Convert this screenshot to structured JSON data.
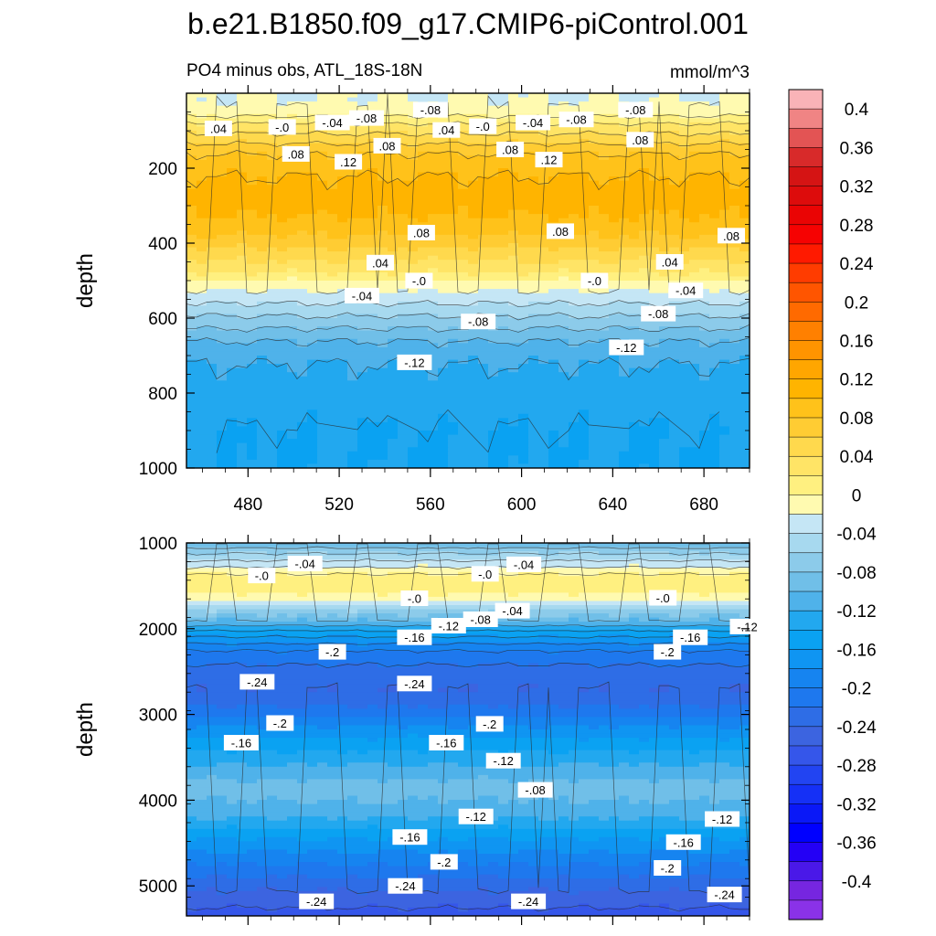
{
  "title": "b.e21.B1850.f09_g17.CMIP6-piControl.001",
  "chart_data": [
    {
      "type": "contour",
      "subtitle_left": "PO4 minus obs, ATL_18S-18N",
      "subtitle_right": "mmol/m^3",
      "ylabel": "depth",
      "xlabel": "",
      "xlim": [
        453,
        700
      ],
      "ylim": [
        1000,
        0
      ],
      "xticks": [
        "480",
        "520",
        "560",
        "600",
        "640",
        "680"
      ],
      "xtick_values": [
        480,
        520,
        560,
        600,
        640,
        680
      ],
      "yticks": [
        "200",
        "400",
        "600",
        "800",
        "1000"
      ],
      "ytick_values": [
        200,
        400,
        600,
        800,
        1000
      ],
      "depth_profile": [
        {
          "depth": 20,
          "value": -0.02
        },
        {
          "depth": 50,
          "value": -0.01
        },
        {
          "depth": 80,
          "value": 0.02
        },
        {
          "depth": 120,
          "value": 0.05
        },
        {
          "depth": 160,
          "value": 0.08
        },
        {
          "depth": 220,
          "value": 0.1
        },
        {
          "depth": 280,
          "value": 0.11
        },
        {
          "depth": 330,
          "value": 0.1
        },
        {
          "depth": 380,
          "value": 0.08
        },
        {
          "depth": 430,
          "value": 0.05
        },
        {
          "depth": 480,
          "value": 0.02
        },
        {
          "depth": 510,
          "value": -0.01
        },
        {
          "depth": 560,
          "value": -0.04
        },
        {
          "depth": 610,
          "value": -0.07
        },
        {
          "depth": 660,
          "value": -0.1
        },
        {
          "depth": 720,
          "value": -0.12
        },
        {
          "depth": 800,
          "value": -0.13
        },
        {
          "depth": 900,
          "value": -0.14
        },
        {
          "depth": 1000,
          "value": -0.14
        }
      ],
      "contour_labels": [
        {
          "x": 467,
          "depth": 94,
          "text": ".04"
        },
        {
          "x": 495,
          "depth": 90,
          "text": "-.0"
        },
        {
          "x": 517,
          "depth": 78,
          "text": "-.04"
        },
        {
          "x": 532,
          "depth": 66,
          "text": "-.08"
        },
        {
          "x": 541,
          "depth": 140,
          "text": ".08"
        },
        {
          "x": 501,
          "depth": 162,
          "text": ".08"
        },
        {
          "x": 524,
          "depth": 183,
          "text": ".12"
        },
        {
          "x": 560,
          "depth": 44,
          "text": "-.08"
        },
        {
          "x": 567,
          "depth": 98,
          "text": ".04"
        },
        {
          "x": 583,
          "depth": 88,
          "text": "-.0"
        },
        {
          "x": 595,
          "depth": 150,
          "text": ".08"
        },
        {
          "x": 605,
          "depth": 78,
          "text": "-.04"
        },
        {
          "x": 624,
          "depth": 70,
          "text": "-.08"
        },
        {
          "x": 612,
          "depth": 177,
          "text": ".12"
        },
        {
          "x": 650,
          "depth": 44,
          "text": "-.08"
        },
        {
          "x": 652,
          "depth": 124,
          "text": ".08"
        },
        {
          "x": 556,
          "depth": 372,
          "text": ".08"
        },
        {
          "x": 617,
          "depth": 368,
          "text": ".08"
        },
        {
          "x": 692,
          "depth": 380,
          "text": ".08"
        },
        {
          "x": 538,
          "depth": 452,
          "text": ".04"
        },
        {
          "x": 555,
          "depth": 500,
          "text": "-.0"
        },
        {
          "x": 530,
          "depth": 540,
          "text": "-.04"
        },
        {
          "x": 581,
          "depth": 609,
          "text": "-.08"
        },
        {
          "x": 553,
          "depth": 718,
          "text": "-.12"
        },
        {
          "x": 665,
          "depth": 450,
          "text": ".04"
        },
        {
          "x": 632,
          "depth": 500,
          "text": "-.0"
        },
        {
          "x": 672,
          "depth": 526,
          "text": "-.04"
        },
        {
          "x": 660,
          "depth": 588,
          "text": "-.08"
        },
        {
          "x": 646,
          "depth": 678,
          "text": "-.12"
        }
      ]
    },
    {
      "type": "contour",
      "ylabel": "depth",
      "xlabel": "",
      "xlim": [
        453,
        700
      ],
      "ylim": [
        5350,
        1000
      ],
      "xticks": [],
      "yticks": [
        "1000",
        "2000",
        "3000",
        "4000",
        "5000"
      ],
      "ytick_values": [
        1000,
        2000,
        3000,
        4000,
        5000
      ],
      "depth_profile": [
        {
          "depth": 1000,
          "value": -0.1
        },
        {
          "depth": 1080,
          "value": -0.07
        },
        {
          "depth": 1180,
          "value": -0.045
        },
        {
          "depth": 1280,
          "value": -0.02
        },
        {
          "depth": 1400,
          "value": 0.01
        },
        {
          "depth": 1550,
          "value": 0.01
        },
        {
          "depth": 1640,
          "value": -0.01
        },
        {
          "depth": 1760,
          "value": -0.05
        },
        {
          "depth": 1900,
          "value": -0.1
        },
        {
          "depth": 2050,
          "value": -0.15
        },
        {
          "depth": 2250,
          "value": -0.2
        },
        {
          "depth": 2500,
          "value": -0.23
        },
        {
          "depth": 2700,
          "value": -0.24
        },
        {
          "depth": 2950,
          "value": -0.215
        },
        {
          "depth": 3200,
          "value": -0.17
        },
        {
          "depth": 3500,
          "value": -0.13
        },
        {
          "depth": 3850,
          "value": -0.09
        },
        {
          "depth": 4150,
          "value": -0.11
        },
        {
          "depth": 4450,
          "value": -0.16
        },
        {
          "depth": 4750,
          "value": -0.2
        },
        {
          "depth": 5050,
          "value": -0.24
        },
        {
          "depth": 5350,
          "value": -0.27
        }
      ],
      "contour_labels": [
        {
          "x": 486,
          "depth": 1380,
          "text": "-.0"
        },
        {
          "x": 505,
          "depth": 1240,
          "text": "-.04"
        },
        {
          "x": 584,
          "depth": 1360,
          "text": "-.0"
        },
        {
          "x": 601,
          "depth": 1250,
          "text": "-.04"
        },
        {
          "x": 553,
          "depth": 1645,
          "text": "-.0"
        },
        {
          "x": 596,
          "depth": 1790,
          "text": "-.04"
        },
        {
          "x": 582,
          "depth": 1890,
          "text": "-.08"
        },
        {
          "x": 553,
          "depth": 2100,
          "text": "-.16"
        },
        {
          "x": 568,
          "depth": 1965,
          "text": "-.12"
        },
        {
          "x": 517,
          "depth": 2270,
          "text": "-.2"
        },
        {
          "x": 662,
          "depth": 1640,
          "text": "-.0"
        },
        {
          "x": 674,
          "depth": 2100,
          "text": "-.16"
        },
        {
          "x": 699,
          "depth": 1975,
          "text": "-.12"
        },
        {
          "x": 664,
          "depth": 2270,
          "text": "-.2"
        },
        {
          "x": 484,
          "depth": 2620,
          "text": "-.24"
        },
        {
          "x": 553,
          "depth": 2640,
          "text": "-.24"
        },
        {
          "x": 494,
          "depth": 3100,
          "text": "-.2"
        },
        {
          "x": 477,
          "depth": 3330,
          "text": "-.16"
        },
        {
          "x": 586,
          "depth": 3110,
          "text": "-.2"
        },
        {
          "x": 567,
          "depth": 3330,
          "text": "-.16"
        },
        {
          "x": 592,
          "depth": 3540,
          "text": "-.12"
        },
        {
          "x": 606,
          "depth": 3880,
          "text": "-.08"
        },
        {
          "x": 580,
          "depth": 4190,
          "text": "-.12"
        },
        {
          "x": 551,
          "depth": 4430,
          "text": "-.16"
        },
        {
          "x": 566,
          "depth": 4720,
          "text": "-.2"
        },
        {
          "x": 549,
          "depth": 5000,
          "text": "-.24"
        },
        {
          "x": 510,
          "depth": 5180,
          "text": "-.24"
        },
        {
          "x": 603,
          "depth": 5180,
          "text": "-.24"
        },
        {
          "x": 688,
          "depth": 4220,
          "text": "-.12"
        },
        {
          "x": 671,
          "depth": 4490,
          "text": "-.16"
        },
        {
          "x": 664,
          "depth": 4790,
          "text": "-.2"
        },
        {
          "x": 689,
          "depth": 5100,
          "text": "-.24"
        }
      ]
    }
  ],
  "colorbar": {
    "labels": [
      "0.4",
      "0.36",
      "0.32",
      "0.28",
      "0.24",
      "0.2",
      "0.16",
      "0.12",
      "0.08",
      "0.04",
      "0",
      "-0.04",
      "-0.08",
      "-0.12",
      "-0.16",
      "-0.2",
      "-0.24",
      "-0.28",
      "-0.32",
      "-0.36",
      "-0.4"
    ],
    "levels": [
      0.42,
      0.4,
      0.38,
      0.36,
      0.34,
      0.32,
      0.3,
      0.28,
      0.26,
      0.24,
      0.22,
      0.2,
      0.18,
      0.16,
      0.14,
      0.12,
      0.1,
      0.08,
      0.06,
      0.04,
      0.02,
      0.0,
      -0.02,
      -0.04,
      -0.06,
      -0.08,
      -0.1,
      -0.12,
      -0.14,
      -0.16,
      -0.18,
      -0.2,
      -0.22,
      -0.24,
      -0.26,
      -0.28,
      -0.3,
      -0.32,
      -0.34,
      -0.36,
      -0.38,
      -0.4,
      -0.42
    ],
    "colors": [
      "#f9b3b7",
      "#f08484",
      "#e35454",
      "#d82a2a",
      "#d51414",
      "#dd0c0c",
      "#ea0404",
      "#f60202",
      "#ff1a00",
      "#ff3c00",
      "#ff5500",
      "#ff6a00",
      "#ff8000",
      "#ff9400",
      "#ffa600",
      "#ffb400",
      "#ffc21a",
      "#ffcc33",
      "#ffd94d",
      "#ffe466",
      "#fff080",
      "#fffab0",
      "#c5e6f5",
      "#a7d9ef",
      "#8ccbea",
      "#70bfe8",
      "#4fb2ea",
      "#22a8ef",
      "#0aa2f2",
      "#0f95f2",
      "#1684f0",
      "#1e78ee",
      "#2e6de6",
      "#3c64e0",
      "#3556ea",
      "#2244f2",
      "#1530f6",
      "#0a18f7",
      "#0000ff",
      "#2400f5",
      "#4a18e8",
      "#7626e0",
      "#8a32e8"
    ]
  }
}
